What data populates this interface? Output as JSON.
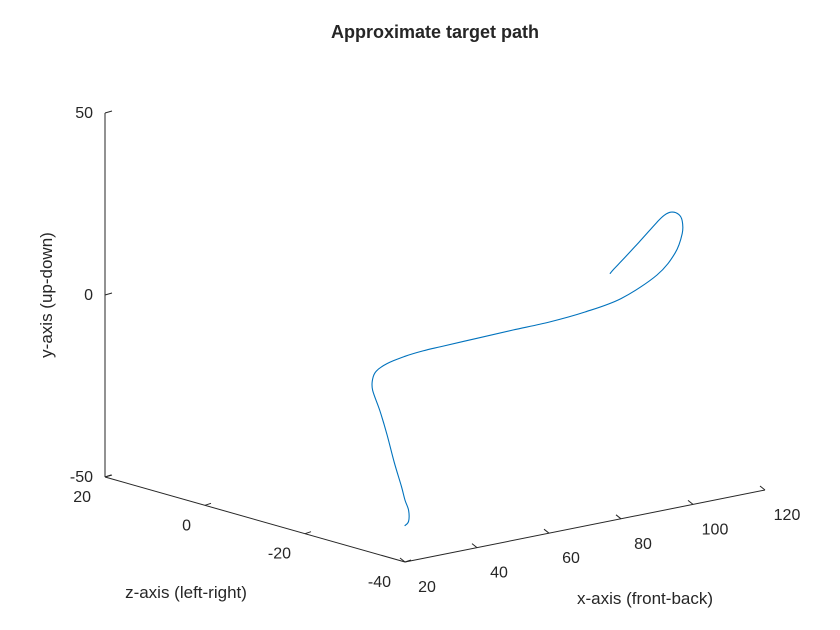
{
  "chart_data": {
    "type": "line",
    "projection": "3d",
    "title": "Approximate target path",
    "xlabel": "x-axis (front-back)",
    "ylabel": "y-axis (up-down)",
    "zlabel": "z-axis (left-right)",
    "xlim": [
      20,
      120
    ],
    "ylim": [
      -50,
      50
    ],
    "zlim": [
      -40,
      20
    ],
    "x_ticks": [
      20,
      40,
      60,
      80,
      100,
      120
    ],
    "y_ticks": [
      -50,
      0,
      50
    ],
    "z_ticks": [
      20,
      0,
      -20,
      -40
    ],
    "grid": false,
    "series": [
      {
        "color": "#0072BD",
        "points": [
          [
            20,
            -40,
            -40
          ],
          [
            21,
            -39,
            -40
          ],
          [
            21,
            -36,
            -40
          ],
          [
            20,
            -33,
            -40
          ],
          [
            19,
            -29,
            -40
          ],
          [
            17,
            -22,
            -40
          ],
          [
            15,
            -14,
            -40
          ],
          [
            13,
            -7,
            -40
          ],
          [
            11,
            -1,
            -40
          ],
          [
            11,
            2,
            -40
          ],
          [
            12,
            4,
            -40
          ],
          [
            15,
            5.5,
            -40
          ],
          [
            20,
            6.5,
            -40
          ],
          [
            25,
            7,
            -40
          ],
          [
            30,
            7.2,
            -40
          ],
          [
            40,
            7.5,
            -40
          ],
          [
            50,
            7.8,
            -40
          ],
          [
            60,
            8,
            -40
          ],
          [
            70,
            8.8,
            -40
          ],
          [
            80,
            10.5,
            -40
          ],
          [
            90,
            15,
            -40
          ],
          [
            95,
            20,
            -40
          ],
          [
            97,
            25,
            -40
          ],
          [
            97,
            28.5,
            -40
          ],
          [
            96,
            30.5,
            -40
          ],
          [
            94,
            31.5,
            -40
          ],
          [
            92,
            31,
            -40
          ],
          [
            90,
            29.5,
            -40
          ],
          [
            85,
            25,
            -40
          ],
          [
            81,
            21.5,
            -40
          ],
          [
            78,
            19,
            -40
          ],
          [
            77,
            18,
            -40
          ]
        ]
      }
    ]
  }
}
